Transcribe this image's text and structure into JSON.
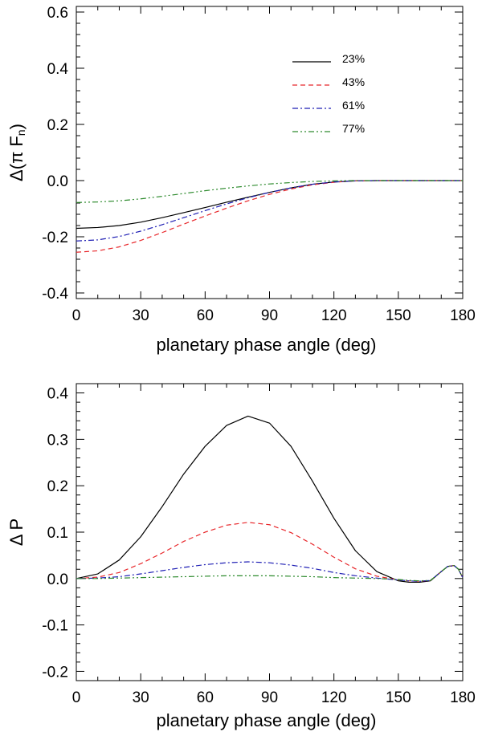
{
  "chart_data": [
    {
      "type": "line",
      "title": "",
      "xlabel": "planetary phase angle (deg)",
      "ylabel": "Δ(π F_n)",
      "ylabel_parts": {
        "delta": "Δ(π F",
        "sub": "n",
        "close": ")"
      },
      "xlim": [
        0,
        180
      ],
      "ylim": [
        -0.42,
        0.62
      ],
      "xticks": [
        0,
        30,
        60,
        90,
        120,
        150,
        180
      ],
      "xtick_labels": [
        "0",
        "30",
        "60",
        "90",
        "120",
        "150",
        "180"
      ],
      "yticks": [
        -0.4,
        -0.2,
        0.0,
        0.2,
        0.4,
        0.6
      ],
      "ytick_labels": [
        "-0.4",
        "-0.2",
        "0.0",
        "0.2",
        "0.4",
        "0.6"
      ],
      "legend": "top-right",
      "x": [
        0,
        10,
        20,
        30,
        40,
        50,
        60,
        70,
        80,
        90,
        100,
        110,
        120,
        130,
        140,
        150,
        160,
        170,
        180
      ],
      "series": [
        {
          "name": "23%",
          "color": "#000000",
          "dash": "solid",
          "values": [
            -0.17,
            -0.167,
            -0.16,
            -0.148,
            -0.132,
            -0.114,
            -0.096,
            -0.077,
            -0.059,
            -0.042,
            -0.026,
            -0.013,
            -0.005,
            -0.001,
            0.0,
            0.0,
            0.0,
            0.0,
            0.0
          ]
        },
        {
          "name": "43%",
          "color": "#e8262a",
          "dash": "dashed",
          "values": [
            -0.255,
            -0.25,
            -0.236,
            -0.213,
            -0.185,
            -0.155,
            -0.126,
            -0.098,
            -0.072,
            -0.049,
            -0.03,
            -0.015,
            -0.006,
            -0.001,
            0.0,
            0.0,
            0.0,
            0.0,
            0.0
          ]
        },
        {
          "name": "61%",
          "color": "#1f1fb4",
          "dash": "dashdot",
          "values": [
            -0.215,
            -0.211,
            -0.199,
            -0.18,
            -0.157,
            -0.132,
            -0.107,
            -0.083,
            -0.061,
            -0.042,
            -0.026,
            -0.013,
            -0.005,
            -0.001,
            0.0,
            0.0,
            0.0,
            0.0,
            0.0
          ]
        },
        {
          "name": "77%",
          "color": "#2e8b2e",
          "dash": "dashdotdot",
          "values": [
            -0.078,
            -0.076,
            -0.072,
            -0.065,
            -0.056,
            -0.046,
            -0.036,
            -0.027,
            -0.019,
            -0.012,
            -0.007,
            -0.003,
            -0.001,
            0.0,
            0.0,
            0.0,
            0.0,
            0.0,
            0.0
          ]
        }
      ]
    },
    {
      "type": "line",
      "title": "",
      "xlabel": "planetary phase angle (deg)",
      "ylabel": "Δ P",
      "xlim": [
        0,
        180
      ],
      "ylim": [
        -0.22,
        0.42
      ],
      "xticks": [
        0,
        30,
        60,
        90,
        120,
        150,
        180
      ],
      "xtick_labels": [
        "0",
        "30",
        "60",
        "90",
        "120",
        "150",
        "180"
      ],
      "yticks": [
        -0.2,
        -0.1,
        0.0,
        0.1,
        0.2,
        0.3,
        0.4
      ],
      "ytick_labels": [
        "-0.2",
        "-0.1",
        "0.0",
        "0.1",
        "0.2",
        "0.3",
        "0.4"
      ],
      "x": [
        0,
        10,
        20,
        30,
        40,
        50,
        60,
        70,
        80,
        90,
        100,
        110,
        120,
        130,
        140,
        150,
        155,
        160,
        165,
        170,
        173,
        176,
        178,
        180
      ],
      "series": [
        {
          "name": "23%",
          "color": "#000000",
          "dash": "solid",
          "values": [
            0.0,
            0.01,
            0.04,
            0.09,
            0.155,
            0.225,
            0.285,
            0.33,
            0.35,
            0.335,
            0.285,
            0.21,
            0.13,
            0.06,
            0.015,
            -0.005,
            -0.008,
            -0.008,
            -0.005,
            0.015,
            0.026,
            0.028,
            0.02,
            0.002
          ]
        },
        {
          "name": "43%",
          "color": "#e8262a",
          "dash": "dashed",
          "values": [
            0.0,
            0.003,
            0.013,
            0.032,
            0.055,
            0.08,
            0.1,
            0.115,
            0.121,
            0.116,
            0.099,
            0.074,
            0.046,
            0.021,
            0.005,
            -0.003,
            -0.005,
            -0.006,
            -0.004,
            0.015,
            0.026,
            0.028,
            0.02,
            0.002
          ]
        },
        {
          "name": "61%",
          "color": "#1f1fb4",
          "dash": "dashdot",
          "values": [
            0.0,
            0.001,
            0.004,
            0.01,
            0.017,
            0.024,
            0.03,
            0.034,
            0.036,
            0.034,
            0.029,
            0.022,
            0.013,
            0.006,
            0.001,
            -0.003,
            -0.005,
            -0.006,
            -0.004,
            0.015,
            0.026,
            0.028,
            0.02,
            0.002
          ]
        },
        {
          "name": "77%",
          "color": "#2e8b2e",
          "dash": "dashdotdot",
          "values": [
            0.0,
            0.0,
            0.001,
            0.002,
            0.003,
            0.004,
            0.005,
            0.006,
            0.006,
            0.006,
            0.005,
            0.004,
            0.002,
            0.001,
            0.0,
            -0.002,
            -0.004,
            -0.005,
            -0.004,
            0.015,
            0.026,
            0.028,
            0.02,
            0.002
          ]
        }
      ]
    }
  ]
}
